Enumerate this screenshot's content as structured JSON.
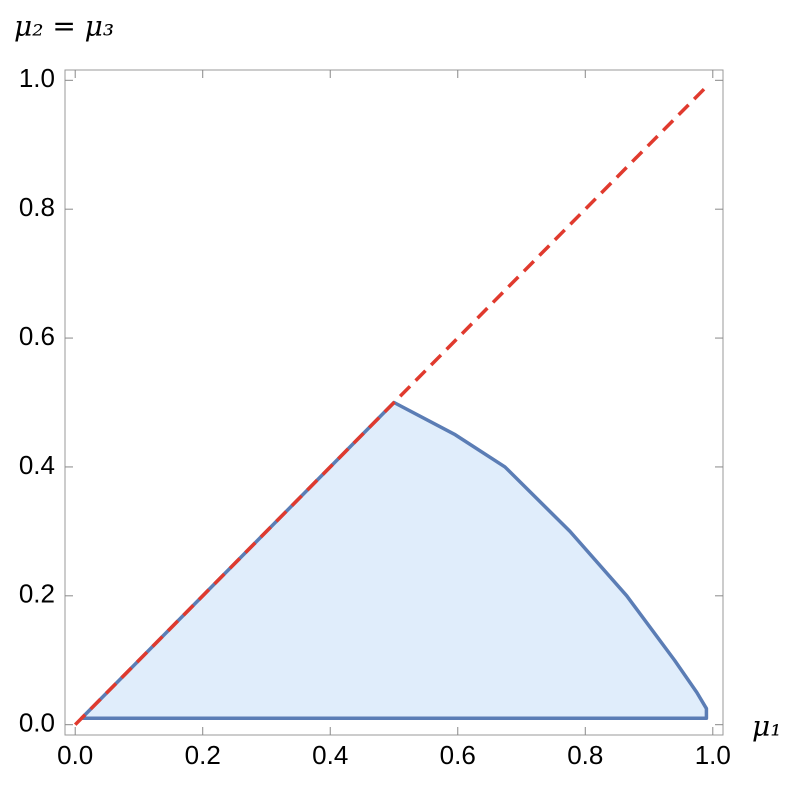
{
  "chart_data": {
    "type": "region",
    "ylabel": "μ₂ = μ₃",
    "xlabel": "μ₁",
    "xlim": [
      -0.016,
      1.016
    ],
    "ylim": [
      -0.016,
      1.016
    ],
    "xticks": [
      {
        "value": 0,
        "label": "0.0"
      },
      0.2,
      0.4,
      0.6,
      0.8,
      {
        "value": 1,
        "label": "1.0"
      }
    ],
    "yticks": [
      {
        "value": 0,
        "label": "0.0"
      },
      0.2,
      0.4,
      0.6,
      0.8,
      {
        "value": 1,
        "label": "1.0"
      }
    ],
    "series": [
      {
        "type": "area",
        "color": "#5b7db5",
        "fill": "#e0edfb",
        "x": [
          0.01,
          0.5,
          0.596,
          0.674,
          0.776,
          0.865,
          0.94,
          0.975,
          0.99,
          0.99,
          0.01
        ],
        "values": [
          0.01,
          0.5,
          0.45,
          0.4,
          0.3,
          0.2,
          0.1,
          0.05,
          0.025,
          0.01,
          0.01
        ]
      },
      {
        "type": "line",
        "color": "#e03a2e",
        "dashed": true,
        "x": [
          0,
          0.99
        ],
        "values": [
          0,
          0.99
        ]
      }
    ]
  }
}
